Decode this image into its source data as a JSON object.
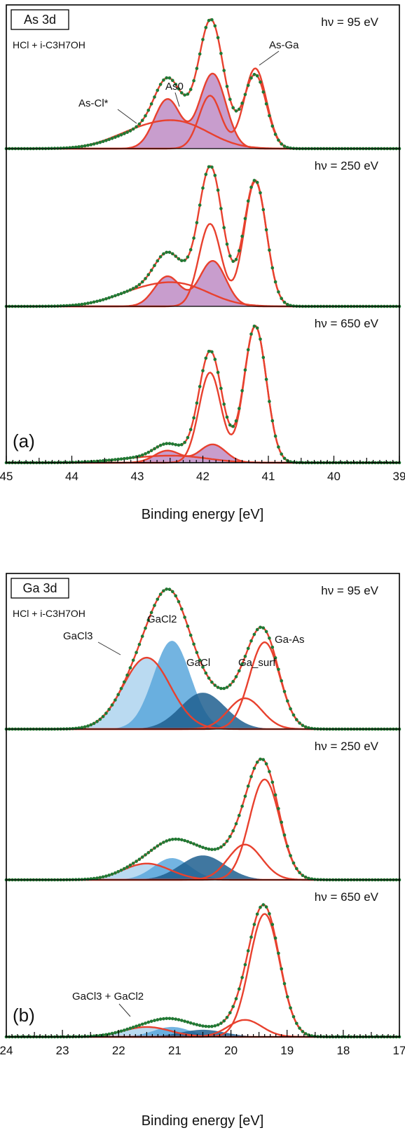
{
  "chart_data": [
    {
      "type": "line",
      "panel_letter": "(a)",
      "core_level": "As 3d",
      "treatment": "HCl + i-C3H7OH",
      "xlabel": "Binding energy [eV]",
      "xlim": [
        45,
        39
      ],
      "x_reversed": true,
      "x_ticks": [
        "45",
        "44",
        "43",
        "42",
        "41",
        "40",
        "39"
      ],
      "grid": false,
      "colors": {
        "data": "#1f7a35",
        "fit": "#e8412e",
        "component_fill": "#b67cbc"
      },
      "components": {
        "As-Ga": {
          "center": 41.2,
          "sigma": 0.17,
          "split": 0.69,
          "ratio": 0.66
        },
        "As0": {
          "center": 41.85,
          "sigma": 0.2,
          "split": 0.69,
          "ratio": 0.66
        },
        "As-Cl*": {
          "center": 42.3,
          "sigma": 0.45,
          "split": 0.69,
          "ratio": 0.66
        }
      },
      "spectra": [
        {
          "energy_label": "hν  = 95 eV",
          "heights": {
            "As-Ga": 0.62,
            "As0": 0.58,
            "As-Cl*": 0.22
          },
          "filled": [
            "As0"
          ],
          "annotations": [
            "As-Cl*",
            "As0",
            "As-Ga"
          ]
        },
        {
          "energy_label": "hν  = 250 eV",
          "heights": {
            "As-Ga": 0.88,
            "As0": 0.32,
            "As-Cl*": 0.17
          },
          "filled": [
            "As0"
          ],
          "annotations": []
        },
        {
          "energy_label": "hν  = 650 eV",
          "heights": {
            "As-Ga": 0.97,
            "As0": 0.13,
            "As-Cl*": 0.05
          },
          "filled": [
            "As0"
          ],
          "annotations": []
        }
      ]
    },
    {
      "type": "line",
      "panel_letter": "(b)",
      "core_level": "Ga 3d",
      "treatment": "HCl + i-C3H7OH",
      "xlabel": "Binding energy [eV]",
      "xlim": [
        24,
        17
      ],
      "x_reversed": true,
      "x_ticks": [
        "24",
        "23",
        "22",
        "21",
        "20",
        "19",
        "18",
        "17"
      ],
      "grid": false,
      "colors": {
        "data": "#1f7a35",
        "fit": "#e8412e",
        "GaCl3": "#aed4ee",
        "GaCl2": "#5aa7dc",
        "GaCl": "#1f5f8f"
      },
      "components": {
        "Ga-As": {
          "center": 19.4,
          "sigma": 0.27
        },
        "Ga_surf": {
          "center": 19.75,
          "sigma": 0.3
        },
        "GaCl": {
          "center": 20.5,
          "sigma": 0.4
        },
        "GaCl2": {
          "center": 21.05,
          "sigma": 0.33
        },
        "GaCl3": {
          "center": 21.5,
          "sigma": 0.42
        }
      },
      "spectra": [
        {
          "energy_label": "hν  = 95 eV",
          "heights": {
            "Ga-As": 0.62,
            "Ga_surf": 0.22,
            "GaCl": 0.26,
            "GaCl2": 0.63,
            "GaCl3": 0.51
          },
          "annotations": [
            "GaCl3",
            "GaCl2",
            "GaCl",
            "Ga_surf",
            "Ga-As"
          ]
        },
        {
          "energy_label": "hν  = 250 eV",
          "heights": {
            "Ga-As": 0.74,
            "Ga_surf": 0.26,
            "GaCl": 0.18,
            "GaCl2": 0.16,
            "GaCl3": 0.12
          },
          "annotations": []
        },
        {
          "energy_label": "hν  = 650 eV",
          "heights": {
            "Ga-As": 0.87,
            "Ga_surf": 0.12,
            "GaCl": 0.05,
            "GaCl2": 0.07,
            "GaCl3": 0.07
          },
          "annotations": [
            "GaCl3 + GaCl2"
          ]
        }
      ]
    }
  ]
}
